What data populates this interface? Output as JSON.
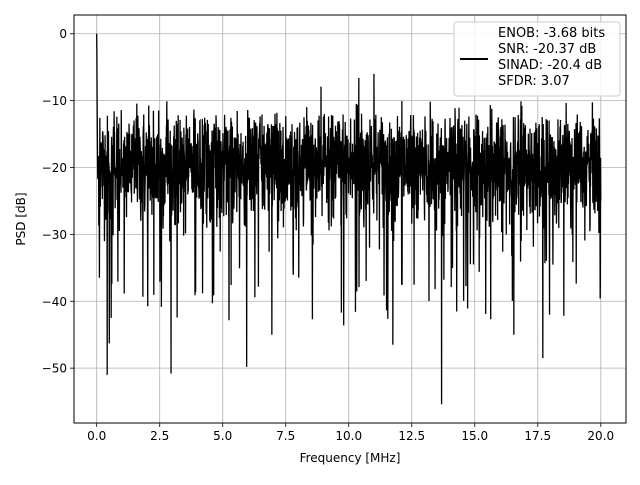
{
  "chart_data": {
    "type": "line",
    "xlabel": "Frequency [MHz]",
    "ylabel": "PSD [dB]",
    "xlim": [
      -0.9,
      21.0
    ],
    "ylim": [
      -58.2,
      2.8
    ],
    "xticks": [
      "0.0",
      "2.5",
      "5.0",
      "7.5",
      "10.0",
      "12.5",
      "15.0",
      "17.5",
      "20.0"
    ],
    "yticks": [
      "0",
      "−10",
      "−20",
      "−30",
      "−40",
      "−50"
    ],
    "grid": true,
    "legend_position": "top-right",
    "series": [
      {
        "name": "ENOB: -3.68 bits\nSNR: -20.37 dB\nSINAD: -20.4 dB\nSFDR: 3.07",
        "color": "#000000",
        "description_points": {
          "x_range": [
            0.0,
            20.0
          ],
          "peak_at_dc_dB": 0.0,
          "noise_floor_band_dB": [
            -30,
            -12
          ],
          "notable_minima": [
            {
              "x": 0.42,
              "y": -51.0
            },
            {
              "x": 0.5,
              "y": -46.3
            },
            {
              "x": 2.95,
              "y": -50.8
            },
            {
              "x": 5.95,
              "y": -49.8
            },
            {
              "x": 6.95,
              "y": -45.0
            },
            {
              "x": 9.8,
              "y": -43.6
            },
            {
              "x": 11.75,
              "y": -46.5
            },
            {
              "x": 13.68,
              "y": -55.4
            },
            {
              "x": 16.55,
              "y": -45.0
            },
            {
              "x": 17.7,
              "y": -48.5
            }
          ],
          "notable_maxima": [
            {
              "x": 0.0,
              "y": 0.0
            },
            {
              "x": 11.0,
              "y": -6.0
            },
            {
              "x": 10.4,
              "y": -6.6
            },
            {
              "x": 8.9,
              "y": -7.9
            }
          ]
        }
      }
    ]
  }
}
